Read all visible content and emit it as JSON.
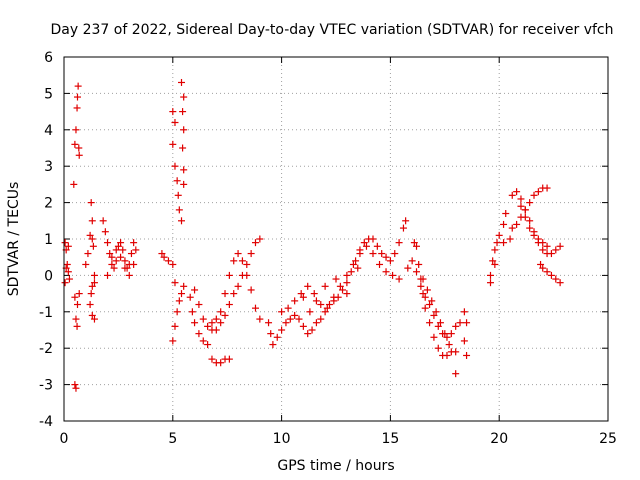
{
  "chart_data": {
    "type": "scatter",
    "title": "Day 237 of 2022, Sidereal Day-to-day VTEC variation (SDTVAR) for receiver vfch",
    "xlabel": "GPS time / hours",
    "ylabel": "SDTVAR / TECUs",
    "xlim": [
      0,
      25
    ],
    "ylim": [
      -4,
      6
    ],
    "xticks": [
      0,
      5,
      10,
      15,
      20,
      25
    ],
    "yticks": [
      -4,
      -3,
      -2,
      -1,
      0,
      1,
      2,
      3,
      4,
      5,
      6
    ],
    "grid": true,
    "marker": "+",
    "color": "#e00000",
    "series": [
      {
        "name": "SDTVAR",
        "points": [
          [
            0.05,
            0.9
          ],
          [
            0.1,
            0.7
          ],
          [
            0.15,
            0.3
          ],
          [
            0.2,
            0.1
          ],
          [
            0.25,
            -0.1
          ],
          [
            0.05,
            -0.2
          ],
          [
            0.1,
            0.2
          ],
          [
            0.2,
            0.8
          ],
          [
            0.45,
            2.5
          ],
          [
            0.5,
            3.6
          ],
          [
            0.55,
            4.0
          ],
          [
            0.6,
            4.6
          ],
          [
            0.65,
            5.2
          ],
          [
            0.62,
            4.9
          ],
          [
            0.68,
            3.5
          ],
          [
            0.7,
            3.3
          ],
          [
            0.5,
            -0.6
          ],
          [
            0.55,
            -1.2
          ],
          [
            0.6,
            -1.4
          ],
          [
            0.62,
            -0.8
          ],
          [
            0.7,
            -0.5
          ],
          [
            0.5,
            -3.0
          ],
          [
            0.55,
            -3.1
          ],
          [
            1.0,
            0.3
          ],
          [
            1.1,
            0.6
          ],
          [
            1.2,
            1.1
          ],
          [
            1.3,
            1.5
          ],
          [
            1.25,
            2.0
          ],
          [
            1.3,
            1.0
          ],
          [
            1.35,
            0.8
          ],
          [
            1.4,
            -0.2
          ],
          [
            1.2,
            -0.8
          ],
          [
            1.25,
            -0.5
          ],
          [
            1.3,
            -0.3
          ],
          [
            1.4,
            0.0
          ],
          [
            1.3,
            -1.1
          ],
          [
            1.4,
            -1.2
          ],
          [
            1.8,
            1.5
          ],
          [
            1.9,
            1.2
          ],
          [
            2.0,
            0.9
          ],
          [
            2.1,
            0.6
          ],
          [
            2.2,
            0.3
          ],
          [
            2.3,
            0.2
          ],
          [
            2.4,
            0.4
          ],
          [
            2.5,
            0.8
          ],
          [
            2.6,
            0.9
          ],
          [
            2.7,
            0.7
          ],
          [
            2.8,
            0.4
          ],
          [
            2.9,
            0.2
          ],
          [
            3.0,
            0.3
          ],
          [
            3.1,
            0.6
          ],
          [
            3.2,
            0.9
          ],
          [
            3.3,
            0.7
          ],
          [
            2.0,
            0.0
          ],
          [
            2.2,
            0.5
          ],
          [
            2.4,
            0.7
          ],
          [
            2.6,
            0.5
          ],
          [
            2.8,
            0.2
          ],
          [
            3.0,
            0.0
          ],
          [
            3.2,
            0.3
          ],
          [
            4.5,
            0.6
          ],
          [
            4.6,
            0.5
          ],
          [
            4.8,
            0.4
          ],
          [
            5.0,
            0.3
          ],
          [
            5.0,
            4.5
          ],
          [
            5.1,
            4.2
          ],
          [
            5.0,
            3.6
          ],
          [
            5.1,
            3.0
          ],
          [
            5.2,
            2.6
          ],
          [
            5.25,
            2.2
          ],
          [
            5.3,
            1.8
          ],
          [
            5.4,
            1.5
          ],
          [
            5.4,
            5.3
          ],
          [
            5.5,
            4.9
          ],
          [
            5.45,
            4.5
          ],
          [
            5.5,
            4.0
          ],
          [
            5.45,
            3.5
          ],
          [
            5.5,
            2.9
          ],
          [
            5.5,
            2.5
          ],
          [
            5.1,
            -0.2
          ],
          [
            5.0,
            -1.8
          ],
          [
            5.1,
            -1.4
          ],
          [
            5.2,
            -1.0
          ],
          [
            5.3,
            -0.7
          ],
          [
            5.4,
            -0.5
          ],
          [
            5.5,
            -0.3
          ],
          [
            5.8,
            -0.6
          ],
          [
            5.9,
            -1.0
          ],
          [
            6.0,
            -1.3
          ],
          [
            6.2,
            -1.6
          ],
          [
            6.4,
            -1.8
          ],
          [
            6.6,
            -1.9
          ],
          [
            6.8,
            -2.3
          ],
          [
            7.0,
            -2.4
          ],
          [
            7.2,
            -2.4
          ],
          [
            7.4,
            -2.3
          ],
          [
            7.6,
            -2.3
          ],
          [
            6.0,
            -0.4
          ],
          [
            6.2,
            -0.8
          ],
          [
            6.4,
            -1.2
          ],
          [
            6.6,
            -1.4
          ],
          [
            6.8,
            -1.5
          ],
          [
            7.0,
            -1.5
          ],
          [
            7.2,
            -1.3
          ],
          [
            7.4,
            -1.1
          ],
          [
            7.6,
            -0.8
          ],
          [
            7.8,
            -0.5
          ],
          [
            8.0,
            -0.3
          ],
          [
            8.2,
            0.0
          ],
          [
            8.4,
            0.3
          ],
          [
            8.6,
            0.6
          ],
          [
            8.8,
            0.9
          ],
          [
            9.0,
            1.0
          ],
          [
            6.8,
            -1.3
          ],
          [
            7.0,
            -1.2
          ],
          [
            7.2,
            -1.0
          ],
          [
            7.4,
            -0.5
          ],
          [
            7.6,
            0.0
          ],
          [
            7.8,
            0.4
          ],
          [
            8.0,
            0.6
          ],
          [
            8.2,
            0.4
          ],
          [
            8.4,
            0.0
          ],
          [
            8.6,
            -0.4
          ],
          [
            8.8,
            -0.9
          ],
          [
            9.0,
            -1.2
          ],
          [
            9.4,
            -1.3
          ],
          [
            9.5,
            -1.6
          ],
          [
            9.6,
            -1.9
          ],
          [
            9.8,
            -1.7
          ],
          [
            10.0,
            -1.5
          ],
          [
            10.2,
            -1.3
          ],
          [
            10.4,
            -1.2
          ],
          [
            10.6,
            -1.1
          ],
          [
            10.8,
            -1.2
          ],
          [
            11.0,
            -1.4
          ],
          [
            11.2,
            -1.6
          ],
          [
            11.4,
            -1.5
          ],
          [
            11.6,
            -1.3
          ],
          [
            11.8,
            -1.2
          ],
          [
            12.0,
            -1.0
          ],
          [
            12.2,
            -0.8
          ],
          [
            12.4,
            -0.7
          ],
          [
            12.6,
            -0.6
          ],
          [
            12.8,
            -0.4
          ],
          [
            13.0,
            -0.2
          ],
          [
            13.2,
            0.1
          ],
          [
            13.4,
            0.4
          ],
          [
            13.6,
            0.7
          ],
          [
            13.8,
            0.9
          ],
          [
            14.0,
            1.0
          ],
          [
            14.2,
            1.0
          ],
          [
            14.4,
            0.8
          ],
          [
            14.6,
            0.6
          ],
          [
            14.8,
            0.5
          ],
          [
            15.0,
            0.4
          ],
          [
            15.2,
            0.6
          ],
          [
            15.4,
            0.9
          ],
          [
            15.6,
            1.3
          ],
          [
            15.7,
            1.5
          ],
          [
            10.0,
            -1.0
          ],
          [
            10.3,
            -0.9
          ],
          [
            10.6,
            -0.7
          ],
          [
            10.9,
            -0.5
          ],
          [
            11.2,
            -0.3
          ],
          [
            11.5,
            -0.5
          ],
          [
            11.8,
            -0.8
          ],
          [
            12.1,
            -0.9
          ],
          [
            12.4,
            -0.6
          ],
          [
            12.7,
            -0.3
          ],
          [
            13.0,
            0.0
          ],
          [
            13.3,
            0.3
          ],
          [
            13.6,
            0.6
          ],
          [
            13.9,
            0.8
          ],
          [
            14.2,
            0.6
          ],
          [
            14.5,
            0.3
          ],
          [
            14.8,
            0.1
          ],
          [
            15.1,
            0.0
          ],
          [
            15.4,
            -0.1
          ],
          [
            11.0,
            -0.6
          ],
          [
            11.3,
            -1.0
          ],
          [
            11.6,
            -0.7
          ],
          [
            12.0,
            -0.3
          ],
          [
            12.5,
            -0.1
          ],
          [
            13.0,
            -0.5
          ],
          [
            13.5,
            0.2
          ],
          [
            15.8,
            0.2
          ],
          [
            16.0,
            0.4
          ],
          [
            16.1,
            0.9
          ],
          [
            16.2,
            0.8
          ],
          [
            16.3,
            0.3
          ],
          [
            16.4,
            -0.1
          ],
          [
            16.5,
            -0.5
          ],
          [
            16.6,
            -0.9
          ],
          [
            16.8,
            -1.3
          ],
          [
            17.0,
            -1.7
          ],
          [
            17.2,
            -2.0
          ],
          [
            17.4,
            -2.2
          ],
          [
            17.6,
            -2.2
          ],
          [
            17.8,
            -2.1
          ],
          [
            16.2,
            0.1
          ],
          [
            16.4,
            -0.3
          ],
          [
            16.6,
            -0.6
          ],
          [
            16.8,
            -0.8
          ],
          [
            17.0,
            -1.1
          ],
          [
            17.2,
            -1.4
          ],
          [
            17.4,
            -1.6
          ],
          [
            17.6,
            -1.7
          ],
          [
            17.8,
            -1.6
          ],
          [
            18.0,
            -1.4
          ],
          [
            18.2,
            -1.3
          ],
          [
            16.5,
            -0.1
          ],
          [
            16.7,
            -0.4
          ],
          [
            16.9,
            -0.7
          ],
          [
            17.1,
            -1.0
          ],
          [
            17.3,
            -1.3
          ],
          [
            17.5,
            -1.6
          ],
          [
            17.7,
            -1.9
          ],
          [
            18.0,
            -2.1
          ],
          [
            18.0,
            -2.7
          ],
          [
            18.4,
            -1.0
          ],
          [
            18.5,
            -1.3
          ],
          [
            18.4,
            -1.8
          ],
          [
            18.5,
            -2.2
          ],
          [
            19.6,
            -0.0
          ],
          [
            19.7,
            0.4
          ],
          [
            19.8,
            0.7
          ],
          [
            19.9,
            0.9
          ],
          [
            20.0,
            1.1
          ],
          [
            20.2,
            1.4
          ],
          [
            20.3,
            1.7
          ],
          [
            19.8,
            0.3
          ],
          [
            19.6,
            -0.2
          ],
          [
            20.2,
            0.9
          ],
          [
            20.5,
            1.0
          ],
          [
            20.6,
            2.2
          ],
          [
            20.8,
            2.3
          ],
          [
            21.0,
            2.1
          ],
          [
            21.2,
            1.8
          ],
          [
            21.4,
            1.5
          ],
          [
            21.6,
            1.2
          ],
          [
            21.8,
            0.9
          ],
          [
            22.0,
            0.7
          ],
          [
            22.2,
            0.6
          ],
          [
            22.4,
            0.6
          ],
          [
            22.6,
            0.7
          ],
          [
            22.8,
            0.8
          ],
          [
            20.6,
            1.3
          ],
          [
            20.8,
            1.4
          ],
          [
            21.0,
            1.6
          ],
          [
            21.2,
            1.8
          ],
          [
            21.4,
            2.0
          ],
          [
            21.6,
            2.2
          ],
          [
            21.8,
            2.3
          ],
          [
            22.0,
            2.4
          ],
          [
            22.2,
            2.4
          ],
          [
            21.0,
            1.9
          ],
          [
            21.2,
            1.6
          ],
          [
            21.4,
            1.3
          ],
          [
            21.6,
            1.1
          ],
          [
            21.8,
            1.0
          ],
          [
            22.0,
            0.9
          ],
          [
            22.2,
            0.8
          ],
          [
            21.9,
            0.3
          ],
          [
            22.0,
            0.2
          ],
          [
            22.2,
            0.1
          ],
          [
            22.4,
            0.0
          ],
          [
            22.6,
            -0.1
          ],
          [
            22.8,
            -0.2
          ]
        ]
      }
    ]
  }
}
